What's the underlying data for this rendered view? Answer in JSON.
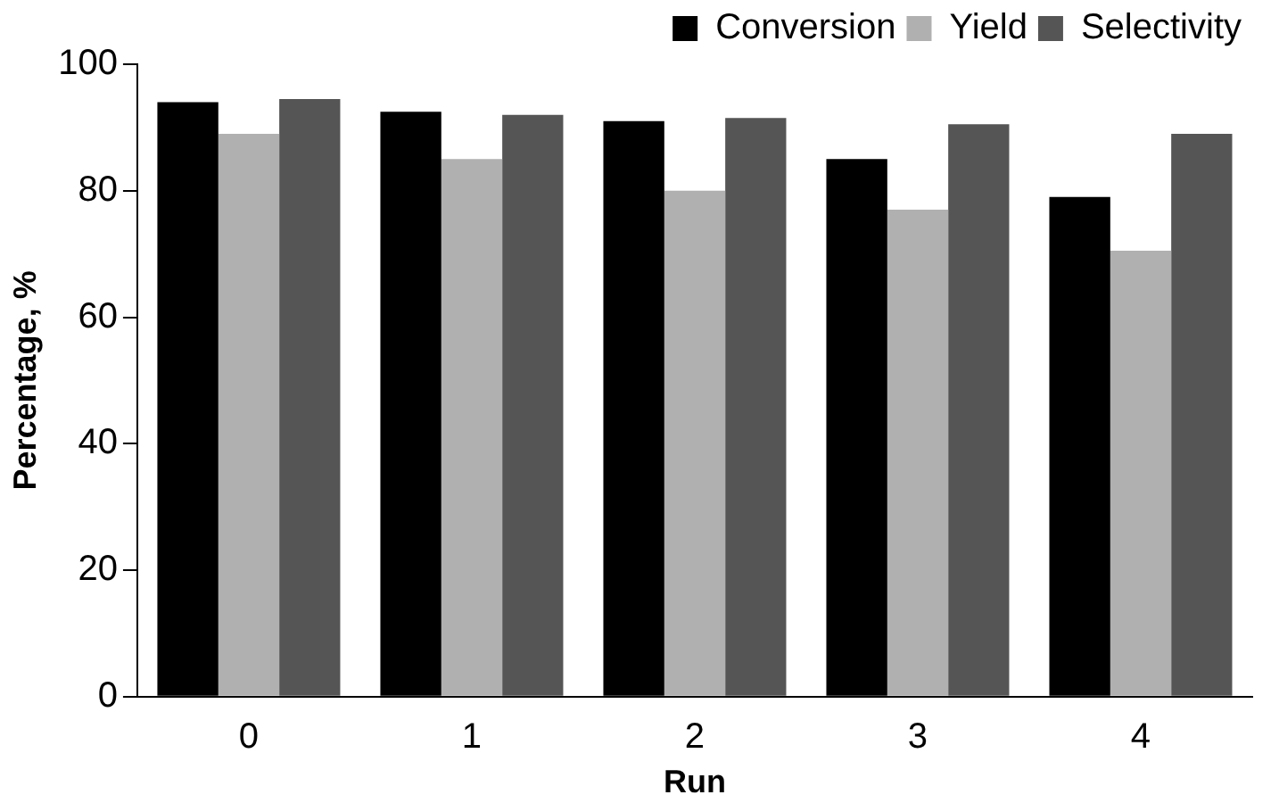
{
  "chart_data": {
    "type": "bar",
    "xlabel": "Run",
    "ylabel": "Percentage, %",
    "categories": [
      "0",
      "1",
      "2",
      "3",
      "4"
    ],
    "series": [
      {
        "name": "Conversion",
        "color": "#000000",
        "values": [
          94,
          92.5,
          91,
          85,
          79
        ]
      },
      {
        "name": "Yield",
        "color": "#b0b0b0",
        "values": [
          89,
          85,
          80,
          77,
          70.5
        ]
      },
      {
        "name": "Selectivity",
        "color": "#555555",
        "values": [
          94.5,
          92,
          91.5,
          90.5,
          89
        ]
      }
    ],
    "ylim": [
      0,
      100
    ],
    "yticks": [
      0,
      20,
      40,
      60,
      80,
      100
    ],
    "grid": false,
    "legend": "top"
  }
}
